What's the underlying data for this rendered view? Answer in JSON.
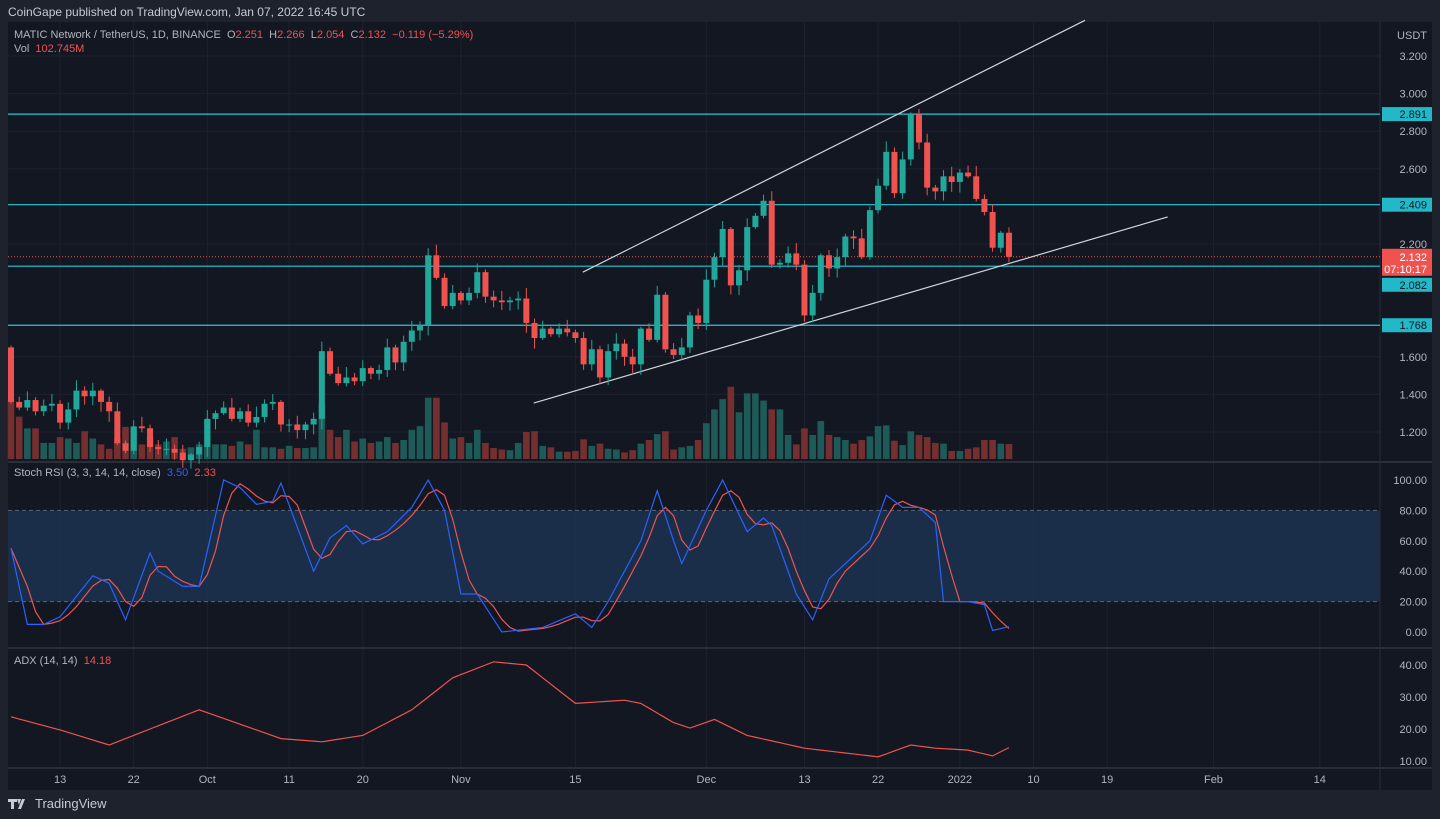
{
  "header": {
    "published": "CoinGape published on TradingView.com, Jan 07, 2022 16:45 UTC"
  },
  "legend": {
    "symbol": "MATIC Network / TetherUS, 1D, BINANCE",
    "o_label": "O",
    "o": "2.251",
    "h_label": "H",
    "h": "2.266",
    "l_label": "L",
    "l": "2.054",
    "c_label": "C",
    "c": "2.132",
    "change": "−0.119 (−5.29%)",
    "vol_label": "Vol",
    "vol": "102.745M",
    "stoch_label": "Stoch RSI (3, 3, 14, 14, close)",
    "stoch_k": "3.50",
    "stoch_d": "2.33",
    "adx_label": "ADX (14, 14)",
    "adx": "14.18"
  },
  "axis": {
    "currency": "USDT",
    "price_ticks": [
      "3.200",
      "3.000",
      "2.800",
      "2.600",
      "2.200",
      "1.600",
      "1.400",
      "1.200"
    ],
    "price_tick_values": [
      3.2,
      3.0,
      2.8,
      2.6,
      2.2,
      1.6,
      1.4,
      1.2
    ],
    "stoch_ticks": [
      "100.00",
      "80.00",
      "60.00",
      "40.00",
      "20.00",
      "0.00"
    ],
    "stoch_tick_values": [
      100,
      80,
      60,
      40,
      20,
      0
    ],
    "adx_ticks": [
      "40.00",
      "30.00",
      "20.00",
      "10.00"
    ],
    "adx_tick_values": [
      40,
      30,
      20,
      10
    ],
    "date_labels": [
      {
        "t": "13",
        "day": 6
      },
      {
        "t": "22",
        "day": 15
      },
      {
        "t": "Oct",
        "day": 24
      },
      {
        "t": "11",
        "day": 34
      },
      {
        "t": "20",
        "day": 43
      },
      {
        "t": "Nov",
        "day": 55
      },
      {
        "t": "15",
        "day": 69
      },
      {
        "t": "Dec",
        "day": 85
      },
      {
        "t": "13",
        "day": 97
      },
      {
        "t": "22",
        "day": 106
      },
      {
        "t": "2022",
        "day": 116
      },
      {
        "t": "10",
        "day": 125
      },
      {
        "t": "19",
        "day": 134
      },
      {
        "t": "Feb",
        "day": 147
      },
      {
        "t": "14",
        "day": 160
      }
    ]
  },
  "levels": [
    {
      "label": "2.891",
      "value": 2.891
    },
    {
      "label": "2.409",
      "value": 2.409
    },
    {
      "label": "2.082",
      "value": 2.082
    },
    {
      "label": "1.768",
      "value": 1.768
    }
  ],
  "last_price": {
    "label": "2.132",
    "value": 2.132,
    "countdown": "07:10:17"
  },
  "trendlines": [
    {
      "name": "upper",
      "p1": [
        69.9,
        2.05
      ],
      "p2": [
        131.3,
        3.39
      ]
    },
    {
      "name": "lower",
      "p1": [
        63.9,
        1.354
      ],
      "p2": [
        141.4,
        2.344
      ]
    }
  ],
  "colors": {
    "up": "#22a79b",
    "down": "#ef5350",
    "level": "#26c6da",
    "k": "#2962ff",
    "d": "#ef5350",
    "bg": "#131722"
  },
  "footer": {
    "brand": "TradingView"
  },
  "chart_data": {
    "type": "candlestick",
    "title": "MATIC Network / TetherUS, 1D, BINANCE",
    "x_start": "2021-09-07",
    "x_end": "2022-01-07",
    "first_open": 1.65,
    "close": [
      1.36,
      1.33,
      1.37,
      1.31,
      1.34,
      1.35,
      1.25,
      1.32,
      1.42,
      1.39,
      1.42,
      1.36,
      1.31,
      1.14,
      1.1,
      1.23,
      1.22,
      1.12,
      1.11,
      1.11,
      1.09,
      1.05,
      1.08,
      1.12,
      1.27,
      1.3,
      1.33,
      1.27,
      1.31,
      1.25,
      1.28,
      1.35,
      1.36,
      1.24,
      1.24,
      1.21,
      1.24,
      1.27,
      1.63,
      1.51,
      1.46,
      1.49,
      1.47,
      1.54,
      1.51,
      1.53,
      1.65,
      1.57,
      1.68,
      1.74,
      1.77,
      2.14,
      2.02,
      1.87,
      1.94,
      1.9,
      1.94,
      2.05,
      1.92,
      1.9,
      1.89,
      1.9,
      1.91,
      1.78,
      1.7,
      1.75,
      1.72,
      1.75,
      1.73,
      1.7,
      1.56,
      1.64,
      1.49,
      1.63,
      1.67,
      1.6,
      1.56,
      1.75,
      1.69,
      1.93,
      1.64,
      1.61,
      1.65,
      1.82,
      1.78,
      2.01,
      2.13,
      2.28,
      1.98,
      2.06,
      2.29,
      2.35,
      2.43,
      2.09,
      2.1,
      2.15,
      2.09,
      1.82,
      1.94,
      2.14,
      2.07,
      2.13,
      2.24,
      2.23,
      2.13,
      2.38,
      2.51,
      2.69,
      2.47,
      2.65,
      2.89,
      2.74,
      2.5,
      2.48,
      2.56,
      2.53,
      2.58,
      2.56,
      2.44,
      2.37,
      2.18,
      2.26,
      2.132
    ],
    "volume_m": [
      410,
      290,
      210,
      210,
      110,
      110,
      150,
      140,
      110,
      190,
      140,
      100,
      70,
      140,
      220,
      220,
      100,
      150,
      100,
      120,
      150,
      70,
      80,
      100,
      270,
      100,
      100,
      90,
      120,
      100,
      200,
      80,
      80,
      70,
      90,
      75,
      75,
      80,
      380,
      200,
      150,
      200,
      120,
      140,
      110,
      120,
      150,
      110,
      130,
      200,
      225,
      420,
      420,
      250,
      140,
      150,
      110,
      200,
      110,
      75,
      65,
      60,
      110,
      185,
      190,
      90,
      80,
      50,
      50,
      55,
      135,
      90,
      105,
      70,
      65,
      45,
      60,
      105,
      130,
      170,
      190,
      65,
      80,
      90,
      130,
      245,
      340,
      410,
      495,
      320,
      450,
      450,
      400,
      340,
      340,
      165,
      100,
      210,
      165,
      260,
      165,
      150,
      130,
      105,
      130,
      155,
      225,
      230,
      125,
      95,
      190,
      165,
      150,
      110,
      105,
      55,
      55,
      70,
      80,
      130,
      130,
      105,
      102.745
    ],
    "ylim": [
      1.05,
      3.3
    ],
    "stoch_rsi": {
      "k_points": [
        [
          0,
          55
        ],
        [
          2,
          5
        ],
        [
          4,
          5
        ],
        [
          6,
          10
        ],
        [
          10,
          37
        ],
        [
          12,
          32
        ],
        [
          14,
          8
        ],
        [
          17,
          52
        ],
        [
          18,
          40
        ],
        [
          21,
          30
        ],
        [
          23,
          30
        ],
        [
          26,
          100
        ],
        [
          28,
          95
        ],
        [
          30,
          84
        ],
        [
          32,
          86
        ],
        [
          33,
          98
        ],
        [
          37,
          40
        ],
        [
          39,
          62
        ],
        [
          41,
          70
        ],
        [
          43,
          58
        ],
        [
          46,
          66
        ],
        [
          49,
          82
        ],
        [
          51,
          100
        ],
        [
          53,
          80
        ],
        [
          55,
          25
        ],
        [
          57,
          25
        ],
        [
          60,
          0
        ],
        [
          65,
          3
        ],
        [
          69,
          12
        ],
        [
          71,
          3
        ],
        [
          73,
          20
        ],
        [
          77,
          60
        ],
        [
          79,
          93
        ],
        [
          81,
          60
        ],
        [
          82,
          45
        ],
        [
          85,
          80
        ],
        [
          87,
          100
        ],
        [
          90,
          66
        ],
        [
          92,
          75
        ],
        [
          93,
          70
        ],
        [
          96,
          25
        ],
        [
          98,
          8
        ],
        [
          100,
          35
        ],
        [
          102,
          45
        ],
        [
          105,
          60
        ],
        [
          107,
          90
        ],
        [
          109,
          82
        ],
        [
          111,
          82
        ],
        [
          113,
          72
        ],
        [
          114,
          20
        ],
        [
          117,
          20
        ],
        [
          119,
          18
        ],
        [
          120,
          1
        ],
        [
          122,
          3.5
        ]
      ],
      "upper_band": 80,
      "lower_band": 20,
      "ylim": [
        0,
        100
      ]
    },
    "adx": {
      "points": [
        [
          0,
          23.8
        ],
        [
          6,
          19.7
        ],
        [
          12,
          15
        ],
        [
          23,
          26
        ],
        [
          33,
          17
        ],
        [
          38,
          16
        ],
        [
          43,
          18
        ],
        [
          49,
          26
        ],
        [
          54,
          36
        ],
        [
          59,
          41
        ],
        [
          63,
          40
        ],
        [
          69,
          28
        ],
        [
          75,
          29
        ],
        [
          77,
          28
        ],
        [
          81,
          22
        ],
        [
          83,
          20.3
        ],
        [
          86,
          23
        ],
        [
          90,
          18
        ],
        [
          97,
          14
        ],
        [
          106,
          11.3
        ],
        [
          110,
          15
        ],
        [
          113,
          14
        ],
        [
          117,
          13.4
        ],
        [
          120,
          11.6
        ],
        [
          122,
          14.18
        ]
      ],
      "ylim": [
        10,
        40
      ]
    }
  }
}
